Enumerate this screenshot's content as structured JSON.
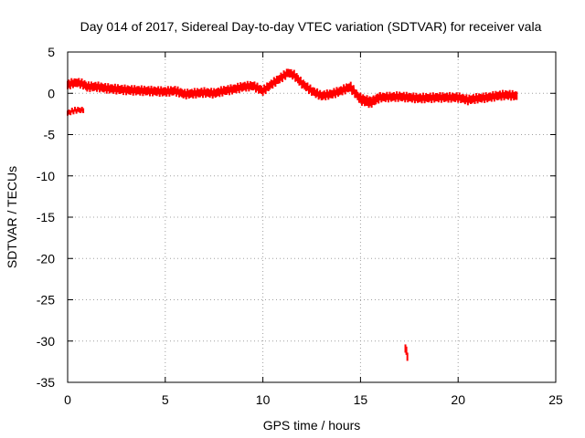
{
  "chart_data": {
    "type": "scatter",
    "title": "Day 014 of 2017, Sidereal Day-to-day VTEC variation (SDTVAR) for receiver vala",
    "xlabel": "GPS time / hours",
    "ylabel": "SDTVAR / TECUs",
    "xlim": [
      0,
      25
    ],
    "ylim": [
      -35,
      5
    ],
    "grid": true,
    "x_ticks": [
      0,
      5,
      10,
      15,
      20,
      25
    ],
    "x_tick_labels": [
      "0",
      "5",
      "10",
      "15",
      "20",
      "25"
    ],
    "y_ticks": [
      5,
      0,
      -5,
      -10,
      -15,
      -20,
      -25,
      -30,
      -35
    ],
    "y_tick_labels": [
      "5",
      "0",
      "-5",
      "-10",
      "-15",
      "-20",
      "-25",
      "-30",
      "-35"
    ],
    "series": [
      {
        "name": "main-track",
        "color": "#ff0000",
        "band_halfwidth": 0.5,
        "x": [
          0.0,
          0.2,
          0.5,
          0.8,
          1.0,
          1.5,
          2.0,
          3.0,
          4.0,
          5.0,
          5.5,
          6.0,
          7.0,
          7.5,
          8.0,
          8.5,
          9.0,
          9.5,
          10.0,
          10.5,
          11.0,
          11.3,
          11.6,
          12.0,
          12.5,
          13.0,
          13.5,
          14.0,
          14.5,
          15.0,
          15.5,
          16.0,
          17.0,
          18.0,
          19.0,
          20.0,
          20.5,
          21.0,
          21.5,
          22.0,
          22.5,
          23.0
        ],
        "y": [
          1.0,
          1.2,
          1.3,
          1.1,
          0.8,
          0.8,
          0.6,
          0.4,
          0.3,
          0.2,
          0.3,
          -0.1,
          0.1,
          0.0,
          0.3,
          0.5,
          0.8,
          0.9,
          0.3,
          1.2,
          2.0,
          2.5,
          2.2,
          1.2,
          0.3,
          -0.3,
          -0.1,
          0.3,
          0.8,
          -0.8,
          -1.2,
          -0.5,
          -0.4,
          -0.6,
          -0.5,
          -0.5,
          -0.8,
          -0.6,
          -0.5,
          -0.3,
          -0.2,
          -0.3
        ]
      },
      {
        "name": "dip-track",
        "color": "#ff0000",
        "band_halfwidth": 0.4,
        "x": [
          14.5,
          14.8,
          15.2,
          15.6,
          16.0
        ],
        "y": [
          0.5,
          -0.2,
          -0.7,
          -0.9,
          -0.3
        ]
      },
      {
        "name": "early-segment",
        "color": "#ff0000",
        "band_halfwidth": 0.3,
        "x": [
          0.0,
          0.3,
          0.6,
          0.8
        ],
        "y": [
          -2.4,
          -2.1,
          -2.0,
          -2.1
        ]
      },
      {
        "name": "outlier-segment",
        "color": "#ff0000",
        "band_halfwidth": 0.5,
        "x": [
          17.3,
          17.35,
          17.4
        ],
        "y": [
          -30.8,
          -31.3,
          -31.9
        ]
      }
    ]
  }
}
